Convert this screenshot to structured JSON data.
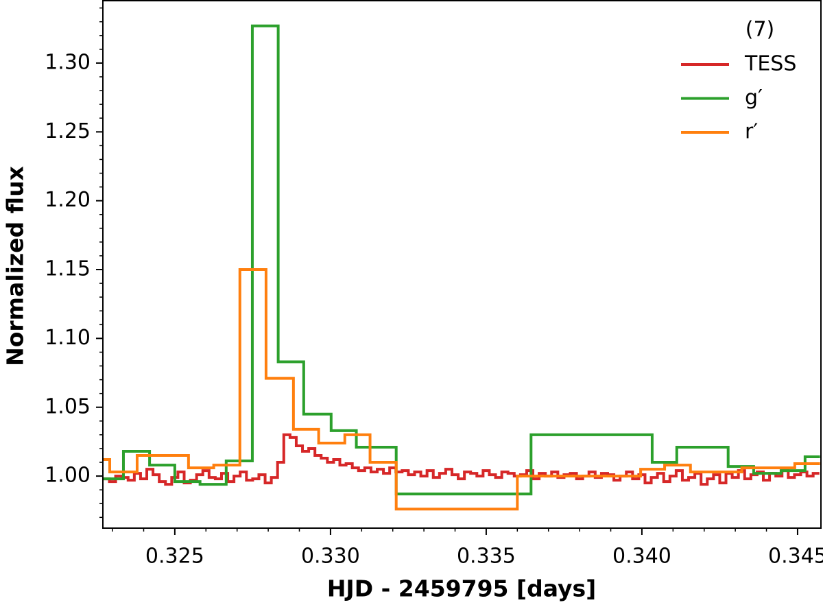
{
  "chart_data": {
    "type": "step",
    "xlabel": "HJD - 2459795 [days]",
    "ylabel": "Normalized flux",
    "legend_title": "(7)",
    "legend": "upper right",
    "xlim": [
      0.32269,
      0.34575
    ],
    "ylim": [
      0.9622,
      1.3453
    ],
    "xticks": [
      0.325,
      {
        "value": 0.33,
        "label": "0.330"
      },
      0.335,
      {
        "value": 0.34,
        "label": "0.340"
      },
      0.345
    ],
    "yticks": [
      {
        "value": 1.0,
        "label": "1.00"
      },
      1.05,
      {
        "value": 1.1,
        "label": "1.10"
      },
      1.15,
      {
        "value": 1.2,
        "label": "1.20"
      },
      1.25,
      {
        "value": 1.3,
        "label": "1.30"
      }
    ],
    "xminorticks": [
      0.323,
      0.324,
      0.326,
      0.327,
      0.328,
      0.329,
      0.331,
      0.332,
      0.333,
      0.334,
      0.336,
      0.337,
      0.338,
      0.339,
      0.341,
      0.342,
      0.343,
      0.344
    ],
    "yminorticks": [
      0.97,
      0.98,
      0.99,
      1.01,
      1.02,
      1.03,
      1.04,
      1.06,
      1.07,
      1.08,
      1.09,
      1.11,
      1.12,
      1.13,
      1.14,
      1.16,
      1.17,
      1.18,
      1.19,
      1.21,
      1.22,
      1.23,
      1.24,
      1.26,
      1.27,
      1.28,
      1.29,
      1.31,
      1.32,
      1.33,
      1.34
    ],
    "series": [
      {
        "name": "TESS",
        "color": "#d62728",
        "x": [
          0.3227,
          0.3229,
          0.3231,
          0.3233,
          0.3235,
          0.3237,
          0.3239,
          0.3241,
          0.3243,
          0.3245,
          0.3247,
          0.3249,
          0.3251,
          0.3253,
          0.3255,
          0.3257,
          0.3259,
          0.3261,
          0.3263,
          0.3265,
          0.3267,
          0.3269,
          0.3271,
          0.3273,
          0.3275,
          0.3277,
          0.3279,
          0.3281,
          0.3283,
          0.3285,
          0.3287,
          0.3289,
          0.3291,
          0.3293,
          0.3295,
          0.3297,
          0.3299,
          0.3301,
          0.3303,
          0.3305,
          0.3307,
          0.3309,
          0.3311,
          0.3313,
          0.3315,
          0.3317,
          0.3319,
          0.3321,
          0.3323,
          0.3325,
          0.3327,
          0.3329,
          0.3331,
          0.3333,
          0.3335,
          0.3337,
          0.3339,
          0.3341,
          0.3343,
          0.3345,
          0.3347,
          0.3349,
          0.3351,
          0.3353,
          0.3355,
          0.3357,
          0.3359,
          0.3361,
          0.3363,
          0.3365,
          0.3367,
          0.3369,
          0.3371,
          0.3373,
          0.3375,
          0.3377,
          0.3379,
          0.3381,
          0.3383,
          0.3385,
          0.3387,
          0.3389,
          0.3391,
          0.3393,
          0.3395,
          0.3397,
          0.3399,
          0.3401,
          0.3403,
          0.3405,
          0.3407,
          0.3409,
          0.3411,
          0.3413,
          0.3415,
          0.3417,
          0.3419,
          0.3421,
          0.3423,
          0.3425,
          0.3427,
          0.3429,
          0.3431,
          0.3433,
          0.3435,
          0.3437,
          0.3439,
          0.3441,
          0.3443,
          0.3445,
          0.3447,
          0.3449,
          0.3451,
          0.3453,
          0.3455,
          0.3457
        ],
        "values": [
          0.998,
          0.996,
          1.0,
          0.999,
          0.997,
          1.002,
          0.998,
          1.005,
          1.001,
          0.996,
          0.994,
          0.999,
          1.003,
          0.995,
          0.997,
          1.001,
          1.004,
          0.999,
          0.998,
          1.002,
          0.996,
          1.0,
          1.003,
          0.997,
          0.998,
          1.001,
          0.995,
          0.999,
          1.01,
          1.03,
          1.028,
          1.022,
          1.018,
          1.02,
          1.015,
          1.013,
          1.01,
          1.012,
          1.008,
          1.009,
          1.006,
          1.004,
          1.006,
          1.003,
          1.005,
          1.002,
          1.006,
          1.003,
          1.004,
          1.001,
          1.003,
          1.0,
          1.004,
          0.999,
          1.002,
          1.005,
          1.001,
          0.998,
          1.003,
          1.002,
          1.0,
          1.004,
          1.001,
          0.999,
          1.003,
          1.002,
          1.0,
          1.001,
          1.004,
          0.998,
          1.002,
          1.0,
          1.003,
          0.999,
          1.001,
          1.002,
          0.998,
          1.0,
          1.003,
          0.999,
          1.002,
          1.001,
          0.997,
          1.0,
          1.003,
          0.998,
          1.001,
          0.995,
          0.999,
          1.002,
          0.996,
          1.0,
          1.004,
          0.997,
          0.999,
          1.002,
          0.994,
          0.998,
          1.001,
          0.995,
          1.002,
          0.999,
          1.004,
          0.998,
          1.001,
          1.003,
          0.997,
          1.002,
          1.0,
          1.004,
          0.999,
          1.001,
          1.003,
          1.0,
          1.002,
          1.002
        ]
      },
      {
        "name": "g′",
        "color": "#2ca02c",
        "x": [
          0.32269,
          0.32335,
          0.32419,
          0.325,
          0.32581,
          0.32665,
          0.32749,
          0.32832,
          0.32914,
          0.33002,
          0.33083,
          0.33211,
          0.33644,
          0.34033,
          0.34112,
          0.34277,
          0.34359,
          0.34447,
          0.34524,
          0.34572
        ],
        "values": [
          0.998,
          1.018,
          1.008,
          0.996,
          0.994,
          1.011,
          1.327,
          1.083,
          1.045,
          1.033,
          1.021,
          0.987,
          1.03,
          1.01,
          1.021,
          1.007,
          1.002,
          1.004,
          1.014,
          1.014
        ]
      },
      {
        "name": "r′",
        "color": "#ff7f0e",
        "x": [
          0.32269,
          0.32291,
          0.32379,
          0.32544,
          0.32625,
          0.32709,
          0.32793,
          0.32881,
          0.32962,
          0.33046,
          0.33127,
          0.33211,
          0.336,
          0.33996,
          0.34073,
          0.34156,
          0.34321,
          0.34403,
          0.34491,
          0.34572
        ],
        "values": [
          1.012,
          1.003,
          1.015,
          1.006,
          1.008,
          1.15,
          1.071,
          1.034,
          1.024,
          1.03,
          1.01,
          0.976,
          1.0,
          1.005,
          1.008,
          1.003,
          1.006,
          1.006,
          1.009,
          1.009
        ]
      }
    ]
  }
}
